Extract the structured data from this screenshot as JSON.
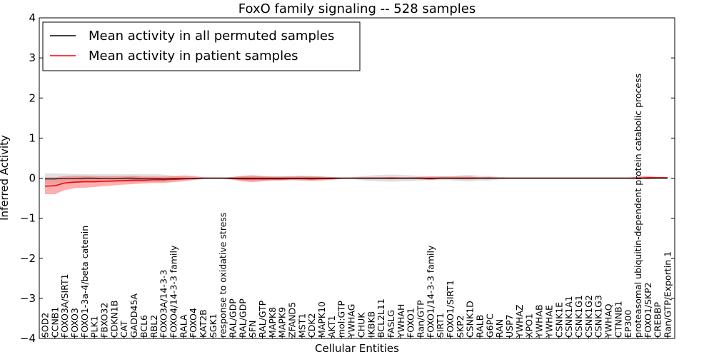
{
  "chart_data": {
    "type": "line",
    "title": "FoxO family signaling -- 528 samples",
    "xlabel": "Cellular Entities",
    "ylabel": "Inferred Activity",
    "ylim": [
      -4,
      4
    ],
    "yticks": [
      -4,
      -3,
      -2,
      -1,
      0,
      1,
      2,
      3,
      4
    ],
    "ytick_labels": [
      "−4",
      "−3",
      "−2",
      "−1",
      "0",
      "1",
      "2",
      "3",
      "4"
    ],
    "legend": {
      "position": "top-left",
      "entries": [
        {
          "label": "Mean activity in all permuted samples",
          "color": "#000000"
        },
        {
          "label": "Mean activity in patient samples",
          "color": "#ff0000"
        }
      ]
    },
    "categories": [
      "SOD2",
      "CCNB1",
      "FOXO3A/SIRT1",
      "FOXO3",
      "FOXO1-3a-4/beta catenin",
      "PLK1",
      "FBXO32",
      "CDKN1B",
      "CAT",
      "GADD45A",
      "BCL6",
      "RBL2",
      "FOXO3A/14-3-3",
      "FOXO4/14-3-3 family",
      "RALA",
      "FOXO4",
      "KAT2B",
      "SGK1",
      "response to oxidative stress",
      "RAL/GDP",
      "RAL/GDP",
      "SFN",
      "RAL/GTP",
      "MAPK8",
      "MAPK9",
      "ZFAND5",
      "MST1",
      "CDK2",
      "MAPK10",
      "AKT1",
      "mol:GTP",
      "YWHAG",
      "CHUK",
      "IKBKB",
      "BCL2L11",
      "FASLG",
      "YWHAH",
      "FOXO1",
      "Ran/GTP",
      "FOXO1/14-3-3 family",
      "SIRT1",
      "FOXO1/SIRT1",
      "SKP2",
      "CSNK1D",
      "RALB",
      "G6PC",
      "RAN",
      "USP7",
      "YWHAZ",
      "XPO1",
      "YWHAB",
      "YWHAE",
      "CSNK1E",
      "CSNK1A1",
      "CSNK1G1",
      "CSNK1G2",
      "CSNK1G3",
      "YWHAQ",
      "CTNNB1",
      "EP300",
      "proteasomal ubiquitin-dependent protein catabolic process",
      "FOXO1/SKP2",
      "CREBBP",
      "Ran/GTP/Exportin 1"
    ],
    "series": [
      {
        "name": "Mean activity in all permuted samples",
        "color": "#000000",
        "values": [
          -0.02,
          -0.02,
          -0.01,
          -0.01,
          0,
          0,
          -0.01,
          -0.01,
          0,
          0,
          -0.01,
          -0.01,
          -0.02,
          -0.01,
          -0.01,
          -0.01,
          0,
          0,
          0,
          0,
          0,
          0,
          0,
          0,
          0,
          0,
          0,
          0,
          0,
          0,
          0,
          0,
          0,
          0,
          0,
          0,
          0,
          0,
          0,
          0,
          0,
          0,
          0,
          0,
          0,
          0,
          0,
          0,
          0,
          0,
          0,
          0,
          0,
          0,
          0,
          0,
          0,
          0,
          0,
          0,
          0,
          0,
          0,
          0
        ],
        "band_low": [
          -0.14,
          -0.14,
          -0.13,
          -0.12,
          -0.1,
          -0.1,
          -0.1,
          -0.1,
          -0.1,
          -0.1,
          -0.1,
          -0.1,
          -0.1,
          -0.07,
          -0.05,
          -0.03,
          -0.02,
          -0.02,
          -0.02,
          -0.03,
          -0.06,
          -0.07,
          -0.06,
          -0.05,
          -0.05,
          -0.05,
          -0.05,
          -0.05,
          -0.04,
          -0.03,
          -0.02,
          -0.02,
          -0.05,
          -0.07,
          -0.08,
          -0.09,
          -0.08,
          -0.07,
          -0.06,
          -0.05,
          -0.05,
          -0.05,
          -0.07,
          -0.08,
          -0.06,
          -0.06,
          -0.03,
          -0.02,
          -0.02,
          -0.02,
          -0.02,
          -0.02,
          -0.02,
          -0.02,
          -0.02,
          -0.02,
          -0.02,
          -0.02,
          -0.02,
          -0.02,
          -0.02,
          -0.02,
          -0.02,
          -0.02
        ],
        "band_high": [
          0.12,
          0.12,
          0.11,
          0.1,
          0.1,
          0.1,
          0.1,
          0.1,
          0.1,
          0.1,
          0.1,
          0.1,
          0.09,
          0.06,
          0.04,
          0.03,
          0.02,
          0.02,
          0.02,
          0.03,
          0.06,
          0.07,
          0.06,
          0.05,
          0.05,
          0.05,
          0.05,
          0.05,
          0.04,
          0.03,
          0.02,
          0.02,
          0.05,
          0.07,
          0.08,
          0.09,
          0.08,
          0.07,
          0.06,
          0.05,
          0.05,
          0.05,
          0.07,
          0.08,
          0.06,
          0.06,
          0.03,
          0.02,
          0.02,
          0.02,
          0.02,
          0.02,
          0.02,
          0.02,
          0.02,
          0.02,
          0.02,
          0.02,
          0.02,
          0.02,
          0.02,
          0.02,
          0.02,
          0.02
        ]
      },
      {
        "name": "Mean activity in patient samples",
        "color": "#ff0000",
        "values": [
          -0.2,
          -0.19,
          -0.12,
          -0.1,
          -0.09,
          -0.09,
          -0.08,
          -0.07,
          -0.06,
          -0.05,
          -0.05,
          -0.04,
          -0.04,
          -0.03,
          -0.02,
          -0.01,
          0,
          0,
          0,
          -0.01,
          -0.02,
          -0.02,
          -0.02,
          -0.02,
          -0.02,
          -0.01,
          -0.01,
          -0.02,
          -0.01,
          -0.01,
          0,
          0,
          0,
          0,
          0,
          0,
          0,
          0,
          0,
          -0.01,
          0,
          0,
          0,
          0,
          0,
          0,
          0,
          0,
          0,
          0,
          0,
          0,
          0,
          0,
          0,
          0,
          0,
          0,
          0,
          0,
          0,
          0.01,
          0.01,
          0.01
        ],
        "band_low": [
          -0.4,
          -0.4,
          -0.3,
          -0.25,
          -0.24,
          -0.22,
          -0.2,
          -0.18,
          -0.16,
          -0.15,
          -0.13,
          -0.12,
          -0.12,
          -0.1,
          -0.08,
          -0.05,
          -0.02,
          -0.01,
          -0.01,
          -0.04,
          -0.08,
          -0.1,
          -0.08,
          -0.06,
          -0.06,
          -0.05,
          -0.06,
          -0.07,
          -0.06,
          -0.04,
          -0.02,
          -0.01,
          -0.02,
          -0.02,
          -0.02,
          -0.03,
          -0.02,
          -0.02,
          -0.03,
          -0.05,
          -0.02,
          -0.02,
          -0.03,
          -0.03,
          -0.02,
          -0.02,
          -0.01,
          -0.01,
          -0.01,
          -0.01,
          -0.01,
          -0.01,
          -0.01,
          -0.01,
          -0.01,
          -0.01,
          -0.01,
          -0.01,
          -0.01,
          -0.01,
          -0.02,
          -0.03,
          -0.01,
          -0.01
        ],
        "band_high": [
          0.02,
          0.02,
          0.05,
          0.06,
          0.06,
          0.05,
          0.05,
          0.05,
          0.05,
          0.06,
          0.04,
          0.04,
          0.04,
          0.05,
          0.07,
          0.06,
          0.02,
          0.01,
          0.01,
          0.03,
          0.06,
          0.07,
          0.05,
          0.04,
          0.04,
          0.05,
          0.06,
          0.05,
          0.04,
          0.03,
          0.01,
          0.01,
          0.02,
          0.02,
          0.02,
          0.03,
          0.02,
          0.02,
          0.03,
          0.04,
          0.04,
          0.04,
          0.04,
          0.04,
          0.02,
          0.03,
          0.01,
          0.01,
          0.01,
          0.01,
          0.01,
          0.01,
          0.01,
          0.01,
          0.01,
          0.01,
          0.01,
          0.01,
          0.01,
          0.01,
          0.04,
          0.06,
          0.03,
          0.02
        ]
      }
    ]
  }
}
